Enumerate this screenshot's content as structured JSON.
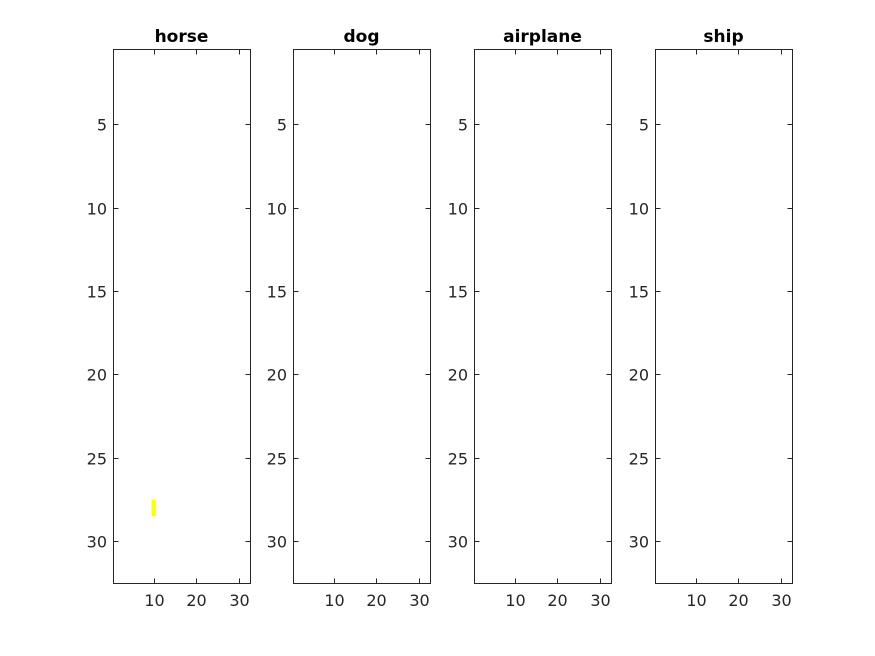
{
  "chart_data": [
    {
      "type": "heatmap",
      "title": "horse",
      "xlim": [
        0.5,
        32.5
      ],
      "ylim": [
        0.5,
        32.5
      ],
      "y_reversed": true,
      "xticks": [
        10,
        20,
        30
      ],
      "xtick_labels": [
        "10",
        "20",
        "30"
      ],
      "yticks": [
        5,
        10,
        15,
        20,
        25,
        30
      ],
      "ytick_labels": [
        "5",
        "10",
        "15",
        "20",
        "25",
        "30"
      ],
      "background": "#ffffff",
      "cells": [
        {
          "x": 10,
          "y": 28,
          "color": "#ffff00"
        }
      ]
    },
    {
      "type": "heatmap",
      "title": "dog",
      "xlim": [
        0.5,
        32.5
      ],
      "ylim": [
        0.5,
        32.5
      ],
      "y_reversed": true,
      "xticks": [
        10,
        20,
        30
      ],
      "xtick_labels": [
        "10",
        "20",
        "30"
      ],
      "yticks": [
        5,
        10,
        15,
        20,
        25,
        30
      ],
      "ytick_labels": [
        "5",
        "10",
        "15",
        "20",
        "25",
        "30"
      ],
      "background": "#ffffff",
      "cells": []
    },
    {
      "type": "heatmap",
      "title": "airplane",
      "xlim": [
        0.5,
        32.5
      ],
      "ylim": [
        0.5,
        32.5
      ],
      "y_reversed": true,
      "xticks": [
        10,
        20,
        30
      ],
      "xtick_labels": [
        "10",
        "20",
        "30"
      ],
      "yticks": [
        5,
        10,
        15,
        20,
        25,
        30
      ],
      "ytick_labels": [
        "5",
        "10",
        "15",
        "20",
        "25",
        "30"
      ],
      "background": "#ffffff",
      "cells": []
    },
    {
      "type": "heatmap",
      "title": "ship",
      "xlim": [
        0.5,
        32.5
      ],
      "ylim": [
        0.5,
        32.5
      ],
      "y_reversed": true,
      "xticks": [
        10,
        20,
        30
      ],
      "xtick_labels": [
        "10",
        "20",
        "30"
      ],
      "yticks": [
        5,
        10,
        15,
        20,
        25,
        30
      ],
      "ytick_labels": [
        "5",
        "10",
        "15",
        "20",
        "25",
        "30"
      ],
      "background": "#ffffff",
      "cells": []
    }
  ]
}
